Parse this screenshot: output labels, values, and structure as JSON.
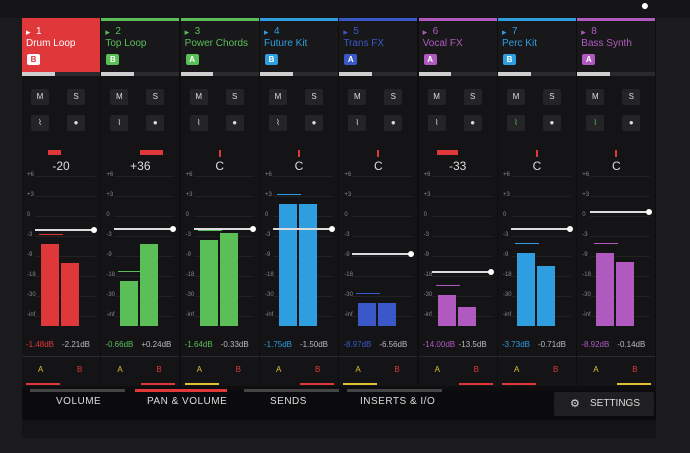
{
  "corner_icon": "record-icon",
  "tracks": [
    {
      "num": "1",
      "name": "Drum Loop",
      "bank": "B",
      "bank_color": "#e0373a",
      "color": "#e0373a",
      "active": true,
      "pan": "-20",
      "pan_side": "left",
      "pan_amount": 0.35,
      "fader": 0.62,
      "meters": [
        0.62,
        0.47
      ],
      "meter_color": "#e0373a",
      "db_l": "-1.48dB",
      "db_r": "-2.21dB",
      "ab": "A",
      "ab_color": "#e0373a",
      "fill": 0.42
    },
    {
      "num": "2",
      "name": "Top Loop",
      "bank": "B",
      "bank_color": "#5bbf58",
      "color": "#5bbf58",
      "active": false,
      "pan": "+36",
      "pan_side": "right",
      "pan_amount": 0.6,
      "fader": 0.63,
      "meters": [
        0.34,
        0.62
      ],
      "meter_color": "#5bbf58",
      "db_l": "-0.66dB",
      "db_r": "+0.24dB",
      "ab": "B",
      "ab_color": "#e0373a",
      "fill": 0.42
    },
    {
      "num": "3",
      "name": "Power Chords",
      "bank": "A",
      "bank_color": "#5bbf58",
      "color": "#5bbf58",
      "active": false,
      "pan": "C",
      "pan_side": "center",
      "pan_amount": 0,
      "fader": 0.63,
      "meters": [
        0.65,
        0.7
      ],
      "meter_color": "#5bbf58",
      "db_l": "-1.64dB",
      "db_r": "-0.33dB",
      "ab": "A",
      "ab_color": "#e0c030",
      "fill": 0.42
    },
    {
      "num": "4",
      "name": "Future Kit",
      "bank": "B",
      "bank_color": "#2f9ee0",
      "color": "#2f9ee0",
      "active": false,
      "pan": "C",
      "pan_side": "center",
      "pan_amount": 0,
      "fader": 0.63,
      "meters": [
        0.92,
        0.92
      ],
      "meter_color": "#2f9ee0",
      "db_l": "-1.75dB",
      "db_r": "-1.50dB",
      "ab": "B",
      "ab_color": "#e0373a",
      "fill": 0.42
    },
    {
      "num": "5",
      "name": "Trans FX",
      "bank": "A",
      "bank_color": "#3a58c8",
      "color": "#3a58c8",
      "active": false,
      "pan": "C",
      "pan_side": "center",
      "pan_amount": 0,
      "fader": 0.45,
      "meters": [
        0.17,
        0.17
      ],
      "meter_color": "#3a58c8",
      "db_l": "-8.97dB",
      "db_r": "-6.56dB",
      "ab": "A",
      "ab_color": "#e0c030",
      "fill": 0.42
    },
    {
      "num": "6",
      "name": "Vocal FX",
      "bank": "A",
      "bank_color": "#b05ac0",
      "color": "#b05ac0",
      "active": false,
      "pan": "-33",
      "pan_side": "left",
      "pan_amount": 0.55,
      "fader": 0.32,
      "meters": [
        0.23,
        0.14
      ],
      "meter_color": "#b05ac0",
      "db_l": "-14.00dB",
      "db_r": "-13.5dB",
      "ab": "B",
      "ab_color": "#e0373a",
      "fill": 0.42
    },
    {
      "num": "7",
      "name": "Perc Kit",
      "bank": "B",
      "bank_color": "#2f9ee0",
      "color": "#2f9ee0",
      "active": false,
      "pan": "C",
      "pan_side": "center",
      "pan_amount": 0,
      "fader": 0.63,
      "meters": [
        0.55,
        0.45
      ],
      "meter_color": "#2f9ee0",
      "db_l": "-3.73dB",
      "db_r": "-0.71dB",
      "ab": "A",
      "ab_color": "#e0373a",
      "fill": 0.42
    },
    {
      "num": "8",
      "name": "Bass Synth",
      "bank": "A",
      "bank_color": "#b05ac0",
      "color": "#b05ac0",
      "active": false,
      "pan": "C",
      "pan_side": "center",
      "pan_amount": 0,
      "fader": 0.75,
      "meters": [
        0.55,
        0.48
      ],
      "meter_color": "#b05ac0",
      "db_l": "-8.92dB",
      "db_r": "-0.14dB",
      "ab": "B",
      "ab_color": "#e0c030",
      "fill": 0.42
    }
  ],
  "button_labels": {
    "mute": "M",
    "solo": "S"
  },
  "scale_ticks": [
    "+6",
    "+3",
    "0",
    "-3",
    "-9",
    "-18",
    "-30",
    "-inf"
  ],
  "tabs": [
    {
      "label": "VOLUME",
      "active": false
    },
    {
      "label": "PAN & VOLUME",
      "active": true
    },
    {
      "label": "SENDS",
      "active": false
    },
    {
      "label": "INSERTS & I/O",
      "active": false
    }
  ],
  "settings_label": "SETTINGS",
  "settings_icon": "gear-icon"
}
